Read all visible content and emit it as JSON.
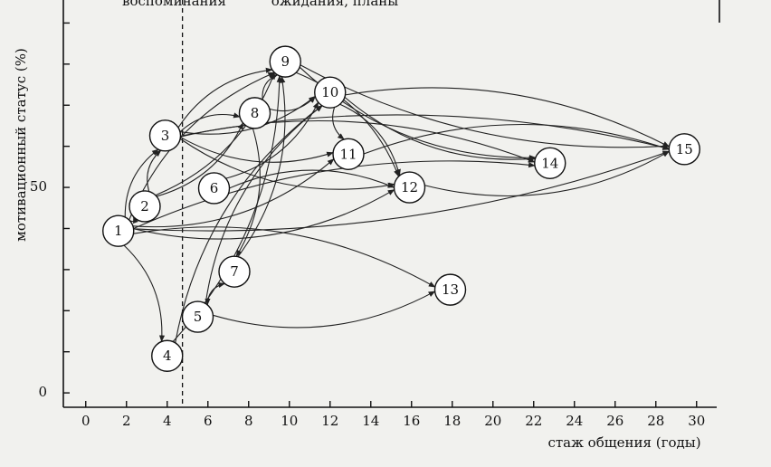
{
  "chart_data": {
    "type": "scatter",
    "title_left": "воспоминания",
    "title_right": "ожидания, планы",
    "xlabel": "стаж общения (годы)",
    "ylabel": "мотивационный статус (%)",
    "labels": [
      "1",
      "2",
      "3",
      "4",
      "5",
      "6",
      "7",
      "8",
      "9",
      "10",
      "11",
      "12",
      "13",
      "14",
      "15"
    ],
    "x": [
      1.6,
      2.9,
      3.9,
      4.0,
      5.5,
      6.3,
      7.3,
      8.3,
      9.8,
      12.0,
      12.9,
      15.9,
      17.9,
      22.8,
      29.4
    ],
    "y": [
      39.4,
      45.4,
      62.6,
      9.0,
      18.5,
      49.8,
      29.5,
      68.1,
      80.6,
      73.1,
      58.1,
      50.0,
      25.1,
      55.9,
      59.3
    ],
    "divider_x": 4.75,
    "xlim": [
      -1.1,
      30.9
    ],
    "xticks": [
      0,
      2,
      4,
      6,
      8,
      10,
      12,
      14,
      16,
      18,
      20,
      22,
      24,
      26,
      28,
      30
    ],
    "ylim": [
      -3.5,
      95.6
    ],
    "yticks": [
      0,
      {
        "value": 10,
        "label": null
      },
      {
        "value": 20,
        "label": null
      },
      {
        "value": 30,
        "label": null
      },
      {
        "value": 40,
        "label": null
      },
      50,
      {
        "value": 60,
        "label": null
      },
      {
        "value": 70,
        "label": null
      },
      {
        "value": 80,
        "label": null
      },
      {
        "value": 90,
        "label": null
      }
    ]
  }
}
